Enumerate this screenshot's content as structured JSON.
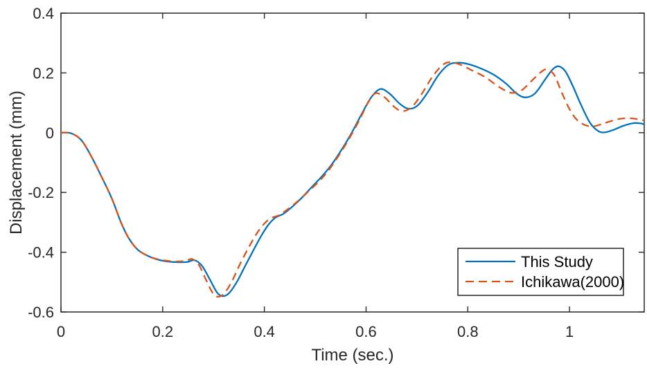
{
  "chart_data": {
    "type": "line",
    "title": "",
    "xlabel": "Time (sec.)",
    "ylabel": "Displacement (mm)",
    "xlim": [
      0,
      1.147
    ],
    "ylim": [
      -0.6,
      0.4
    ],
    "grid": false,
    "frame": "box",
    "tick_direction": "in",
    "axis_color": "#262626",
    "xticks": {
      "values": [
        0,
        0.2,
        0.4,
        0.6,
        0.8,
        1
      ],
      "labels": [
        "0",
        "0.2",
        "0.4",
        "0.6",
        "0.8",
        "1"
      ]
    },
    "yticks": {
      "values": [
        -0.6,
        -0.4,
        -0.2,
        0,
        0.2,
        0.4
      ],
      "labels": [
        "-0.6",
        "-0.4",
        "-0.2",
        "0",
        "0.2",
        "0.4"
      ]
    },
    "legend": {
      "position": "south-east",
      "border_color": "#000000",
      "background": "#ffffff"
    },
    "series": [
      {
        "name": "This Study",
        "color": "#0072BD",
        "style": "solid",
        "points": [
          [
            0,
            0
          ],
          [
            0.02,
            -0.002
          ],
          [
            0.04,
            -0.025
          ],
          [
            0.06,
            -0.08
          ],
          [
            0.08,
            -0.148
          ],
          [
            0.1,
            -0.22
          ],
          [
            0.118,
            -0.3
          ],
          [
            0.133,
            -0.352
          ],
          [
            0.15,
            -0.39
          ],
          [
            0.168,
            -0.41
          ],
          [
            0.185,
            -0.422
          ],
          [
            0.205,
            -0.43
          ],
          [
            0.225,
            -0.433
          ],
          [
            0.247,
            -0.433
          ],
          [
            0.263,
            -0.427
          ],
          [
            0.278,
            -0.447
          ],
          [
            0.293,
            -0.492
          ],
          [
            0.307,
            -0.535
          ],
          [
            0.318,
            -0.547
          ],
          [
            0.33,
            -0.538
          ],
          [
            0.345,
            -0.502
          ],
          [
            0.362,
            -0.447
          ],
          [
            0.378,
            -0.395
          ],
          [
            0.394,
            -0.345
          ],
          [
            0.408,
            -0.308
          ],
          [
            0.422,
            -0.284
          ],
          [
            0.437,
            -0.272
          ],
          [
            0.452,
            -0.252
          ],
          [
            0.47,
            -0.224
          ],
          [
            0.49,
            -0.188
          ],
          [
            0.51,
            -0.152
          ],
          [
            0.53,
            -0.112
          ],
          [
            0.55,
            -0.062
          ],
          [
            0.57,
            -0.006
          ],
          [
            0.59,
            0.058
          ],
          [
            0.61,
            0.118
          ],
          [
            0.628,
            0.146
          ],
          [
            0.646,
            0.131
          ],
          [
            0.666,
            0.097
          ],
          [
            0.684,
            0.08
          ],
          [
            0.702,
            0.092
          ],
          [
            0.722,
            0.137
          ],
          [
            0.742,
            0.192
          ],
          [
            0.762,
            0.227
          ],
          [
            0.782,
            0.234
          ],
          [
            0.802,
            0.229
          ],
          [
            0.827,
            0.214
          ],
          [
            0.852,
            0.193
          ],
          [
            0.876,
            0.163
          ],
          [
            0.896,
            0.131
          ],
          [
            0.913,
            0.118
          ],
          [
            0.932,
            0.131
          ],
          [
            0.952,
            0.178
          ],
          [
            0.967,
            0.212
          ],
          [
            0.979,
            0.222
          ],
          [
            0.992,
            0.205
          ],
          [
            1.006,
            0.158
          ],
          [
            1.022,
            0.096
          ],
          [
            1.04,
            0.034
          ],
          [
            1.056,
            0.006
          ],
          [
            1.069,
            0.001
          ],
          [
            1.086,
            0.009
          ],
          [
            1.106,
            0.023
          ],
          [
            1.126,
            0.032
          ],
          [
            1.14,
            0.031
          ],
          [
            1.147,
            0.028
          ]
        ]
      },
      {
        "name": "Ichikawa(2000)",
        "color": "#D95319",
        "style": "dashed",
        "points": [
          [
            0,
            0
          ],
          [
            0.02,
            -0.002
          ],
          [
            0.04,
            -0.025
          ],
          [
            0.06,
            -0.08
          ],
          [
            0.08,
            -0.148
          ],
          [
            0.1,
            -0.22
          ],
          [
            0.118,
            -0.3
          ],
          [
            0.133,
            -0.352
          ],
          [
            0.15,
            -0.39
          ],
          [
            0.168,
            -0.41
          ],
          [
            0.185,
            -0.421
          ],
          [
            0.205,
            -0.428
          ],
          [
            0.225,
            -0.431
          ],
          [
            0.245,
            -0.429
          ],
          [
            0.258,
            -0.423
          ],
          [
            0.272,
            -0.445
          ],
          [
            0.286,
            -0.495
          ],
          [
            0.299,
            -0.538
          ],
          [
            0.309,
            -0.549
          ],
          [
            0.321,
            -0.538
          ],
          [
            0.336,
            -0.498
          ],
          [
            0.352,
            -0.44
          ],
          [
            0.368,
            -0.388
          ],
          [
            0.384,
            -0.34
          ],
          [
            0.399,
            -0.306
          ],
          [
            0.413,
            -0.286
          ],
          [
            0.428,
            -0.277
          ],
          [
            0.443,
            -0.26
          ],
          [
            0.462,
            -0.235
          ],
          [
            0.487,
            -0.196
          ],
          [
            0.508,
            -0.162
          ],
          [
            0.528,
            -0.122
          ],
          [
            0.548,
            -0.072
          ],
          [
            0.568,
            -0.016
          ],
          [
            0.588,
            0.046
          ],
          [
            0.605,
            0.104
          ],
          [
            0.619,
            0.132
          ],
          [
            0.636,
            0.119
          ],
          [
            0.655,
            0.087
          ],
          [
            0.671,
            0.072
          ],
          [
            0.69,
            0.086
          ],
          [
            0.71,
            0.131
          ],
          [
            0.73,
            0.186
          ],
          [
            0.75,
            0.226
          ],
          [
            0.766,
            0.236
          ],
          [
            0.786,
            0.227
          ],
          [
            0.81,
            0.207
          ],
          [
            0.834,
            0.186
          ],
          [
            0.858,
            0.157
          ],
          [
            0.876,
            0.139
          ],
          [
            0.889,
            0.133
          ],
          [
            0.906,
            0.142
          ],
          [
            0.926,
            0.174
          ],
          [
            0.944,
            0.203
          ],
          [
            0.956,
            0.212
          ],
          [
            0.97,
            0.193
          ],
          [
            0.984,
            0.138
          ],
          [
            0.999,
            0.082
          ],
          [
            1.014,
            0.044
          ],
          [
            1.03,
            0.026
          ],
          [
            1.046,
            0.021
          ],
          [
            1.062,
            0.028
          ],
          [
            1.082,
            0.039
          ],
          [
            1.102,
            0.047
          ],
          [
            1.122,
            0.048
          ],
          [
            1.14,
            0.043
          ],
          [
            1.147,
            0.041
          ]
        ]
      }
    ]
  }
}
